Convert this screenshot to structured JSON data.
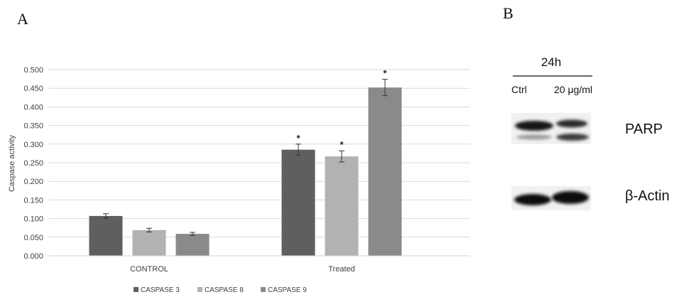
{
  "panels": {
    "a_label": "A",
    "b_label": "B"
  },
  "chart_data": {
    "type": "bar",
    "categories": [
      "CONTROL",
      "Treated"
    ],
    "series": [
      {
        "name": "CASPASE 3",
        "color": "#5f5f5f",
        "values": [
          0.107,
          0.285
        ],
        "errors": [
          0.006,
          0.015
        ],
        "significance": [
          "",
          "*"
        ]
      },
      {
        "name": "CASPASE 8",
        "color": "#b2b2b2",
        "values": [
          0.069,
          0.267
        ],
        "errors": [
          0.005,
          0.015
        ],
        "significance": [
          "",
          "*"
        ]
      },
      {
        "name": "CASPASE 9",
        "color": "#8a8a8a",
        "values": [
          0.059,
          0.452
        ],
        "errors": [
          0.004,
          0.022
        ],
        "significance": [
          "",
          "*"
        ]
      }
    ],
    "ylabel": "Caspase activity",
    "xlabel": "",
    "ylim": [
      0,
      0.5
    ],
    "yticks": [
      "0.000",
      "0.050",
      "0.100",
      "0.150",
      "0.200",
      "0.250",
      "0.300",
      "0.350",
      "0.400",
      "0.450",
      "0.500"
    ],
    "grid": true,
    "legend_position": "bottom"
  },
  "western_blot": {
    "timepoint": "24h",
    "lanes": [
      "Ctrl",
      "20 μg/ml"
    ],
    "proteins": [
      "PARP",
      "β-Actin"
    ]
  }
}
